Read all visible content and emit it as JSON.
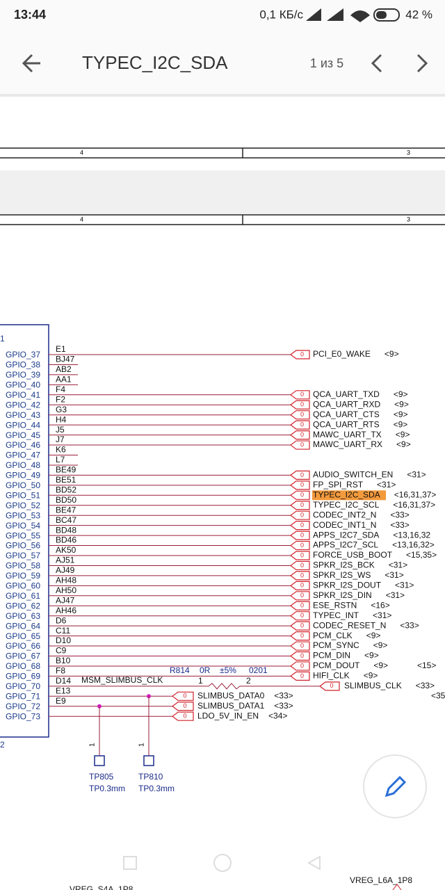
{
  "status": {
    "time": "13:44",
    "speed": "0,1 КБ/с",
    "battery": "42 %"
  },
  "toolbar": {
    "title": "TYPEC_I2C_SDA",
    "counter": "1 из 5"
  },
  "rulers": [
    {
      "left": "4",
      "right": "3"
    },
    {
      "left": "4",
      "right": "3"
    }
  ],
  "schematic": {
    "unit_top": "1",
    "unit_bottom": "2",
    "connector": "0",
    "pins": [
      {
        "gpio": "GPIO_37",
        "ball": "E1",
        "net": "PCI_E0_WAKE",
        "ref": "<9>"
      },
      {
        "gpio": "GPIO_38",
        "ball": "BJ47"
      },
      {
        "gpio": "GPIO_39",
        "ball": "AB2"
      },
      {
        "gpio": "GPIO_40",
        "ball": "AA1"
      },
      {
        "gpio": "GPIO_41",
        "ball": "F4",
        "net": "QCA_UART_TXD",
        "ref": "<9>"
      },
      {
        "gpio": "GPIO_42",
        "ball": "F2",
        "net": "QCA_UART_RXD",
        "ref": "<9>"
      },
      {
        "gpio": "GPIO_43",
        "ball": "G3",
        "net": "QCA_UART_CTS",
        "ref": "<9>"
      },
      {
        "gpio": "GPIO_44",
        "ball": "H4",
        "net": "QCA_UART_RTS",
        "ref": "<9>"
      },
      {
        "gpio": "GPIO_45",
        "ball": "J5",
        "net": "MAWC_UART_TX",
        "ref": "<9>"
      },
      {
        "gpio": "GPIO_46",
        "ball": "J7",
        "net": "MAWC_UART_RX",
        "ref": "<9>"
      },
      {
        "gpio": "GPIO_47",
        "ball": "K6"
      },
      {
        "gpio": "GPIO_48",
        "ball": "L7"
      },
      {
        "gpio": "GPIO_49",
        "ball": "BE49",
        "net": "AUDIO_SWITCH_EN",
        "ref": "<31>"
      },
      {
        "gpio": "GPIO_50",
        "ball": "BE51",
        "net": "FP_SPI_RST",
        "ref": "<31>"
      },
      {
        "gpio": "GPIO_51",
        "ball": "BD52",
        "net": "TYPEC_I2C_SDA",
        "ref": "<16,31,37>"
      },
      {
        "gpio": "GPIO_52",
        "ball": "BD50",
        "net": "TYPEC_I2C_SCL",
        "ref": "<16,31,37>"
      },
      {
        "gpio": "GPIO_53",
        "ball": "BE47",
        "net": "CODEC_INT2_N",
        "ref": "<33>"
      },
      {
        "gpio": "GPIO_54",
        "ball": "BC47",
        "net": "CODEC_INT1_N",
        "ref": "<33>"
      },
      {
        "gpio": "GPIO_55",
        "ball": "BD48",
        "net": "APPS_I2C7_SDA",
        "ref": "<13,16,32"
      },
      {
        "gpio": "GPIO_56",
        "ball": "BD46",
        "net": "APPS_I2C7_SCL",
        "ref": "<13,16,32>"
      },
      {
        "gpio": "GPIO_57",
        "ball": "AK50",
        "net": "FORCE_USB_BOOT",
        "ref": "<15,35>"
      },
      {
        "gpio": "GPIO_58",
        "ball": "AJ51",
        "net": "SPKR_I2S_BCK",
        "ref": "<31>"
      },
      {
        "gpio": "GPIO_59",
        "ball": "AJ49",
        "net": "SPKR_I2S_WS",
        "ref": "<31>"
      },
      {
        "gpio": "GPIO_60",
        "ball": "AH48",
        "net": "SPKR_I2S_DOUT",
        "ref": "<31>"
      },
      {
        "gpio": "GPIO_61",
        "ball": "AH50",
        "net": "SPKR_I2S_DIN",
        "ref": "<31>"
      },
      {
        "gpio": "GPIO_62",
        "ball": "AJ47",
        "net": "ESE_RSTN",
        "ref": "<16>"
      },
      {
        "gpio": "GPIO_63",
        "ball": "AH46",
        "net": "TYPEC_INT",
        "ref": "<31>"
      },
      {
        "gpio": "GPIO_64",
        "ball": "D6",
        "net": "CODEC_RESET_N",
        "ref": "<33>"
      },
      {
        "gpio": "GPIO_65",
        "ball": "C11",
        "net": "PCM_CLK",
        "ref": "<9>"
      },
      {
        "gpio": "GPIO_66",
        "ball": "D10",
        "net": "PCM_SYNC",
        "ref": "<9>"
      },
      {
        "gpio": "GPIO_67",
        "ball": "C9",
        "net": "PCM_DIN",
        "ref": "<9>"
      },
      {
        "gpio": "GPIO_68",
        "ball": "B10",
        "net": "PCM_DOUT",
        "ref": "<9>"
      },
      {
        "gpio": "GPIO_69",
        "ball": "F8",
        "net": "HIFI_CLK",
        "ref": "<9>"
      },
      {
        "gpio": "GPIO_70",
        "ball": "D14",
        "net": "SLIMBUS_CLK",
        "ref": "<33>"
      },
      {
        "gpio": "GPIO_71",
        "ball": "E13",
        "net": "SLIMBUS_DATA0",
        "ref": "<33>"
      },
      {
        "gpio": "GPIO_72",
        "ball": "E9",
        "net": "SLIMBUS_DATA1",
        "ref": "<33>"
      },
      {
        "gpio": "GPIO_73",
        "net": "LDO_5V_IN_EN",
        "ref": "<34>"
      }
    ],
    "resistor": {
      "net": "MSM_SLIMBUS_CLK",
      "ref": "R814",
      "value": "0R",
      "tolerance": "±5%",
      "package": "0201",
      "pin1": "1",
      "pin2": "2"
    },
    "extra_refs": [
      "<15>",
      "<35"
    ],
    "test_points": [
      {
        "pin": "1",
        "ref": "TP805",
        "type": "TP0.3mm"
      },
      {
        "pin": "1",
        "ref": "TP810",
        "type": "TP0.3mm"
      }
    ],
    "bottom_nets": [
      "VREG_S4A_1P8",
      "VREG_L6A_1P8"
    ]
  }
}
